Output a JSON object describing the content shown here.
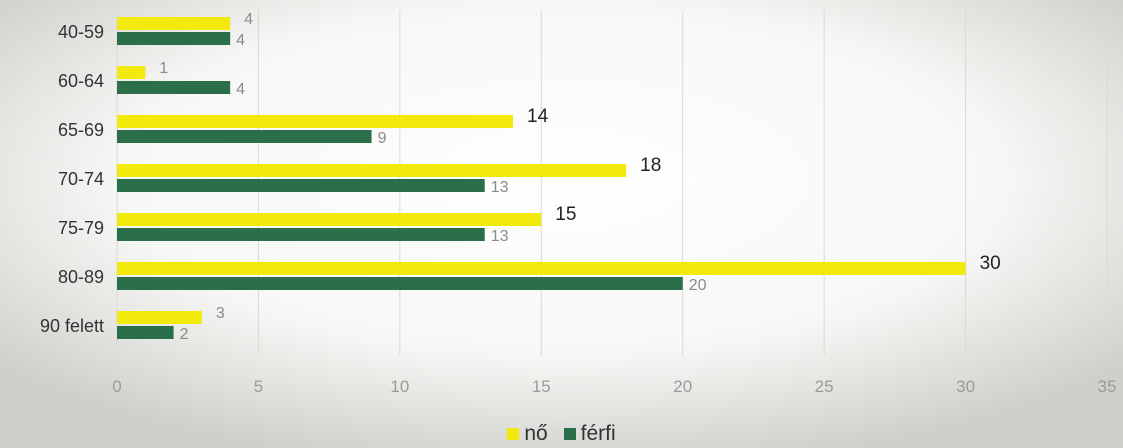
{
  "chart_data": {
    "type": "bar",
    "orientation": "horizontal",
    "title": "",
    "xlabel": "",
    "ylabel": "",
    "categories": [
      "40-59",
      "60-64",
      "65-69",
      "70-74",
      "75-79",
      "80-89",
      "90 felett"
    ],
    "series": [
      {
        "name": "nő",
        "color": "#f2ea0c",
        "values": [
          4,
          1,
          14,
          18,
          15,
          30,
          3
        ]
      },
      {
        "name": "férfi",
        "color": "#2a6e4a",
        "values": [
          4,
          4,
          9,
          13,
          13,
          20,
          2
        ]
      }
    ],
    "xlim": [
      0,
      35
    ],
    "xticks": [
      0,
      5,
      10,
      15,
      20,
      25,
      30,
      35
    ],
    "grid": true,
    "legend": "bottom-center"
  }
}
